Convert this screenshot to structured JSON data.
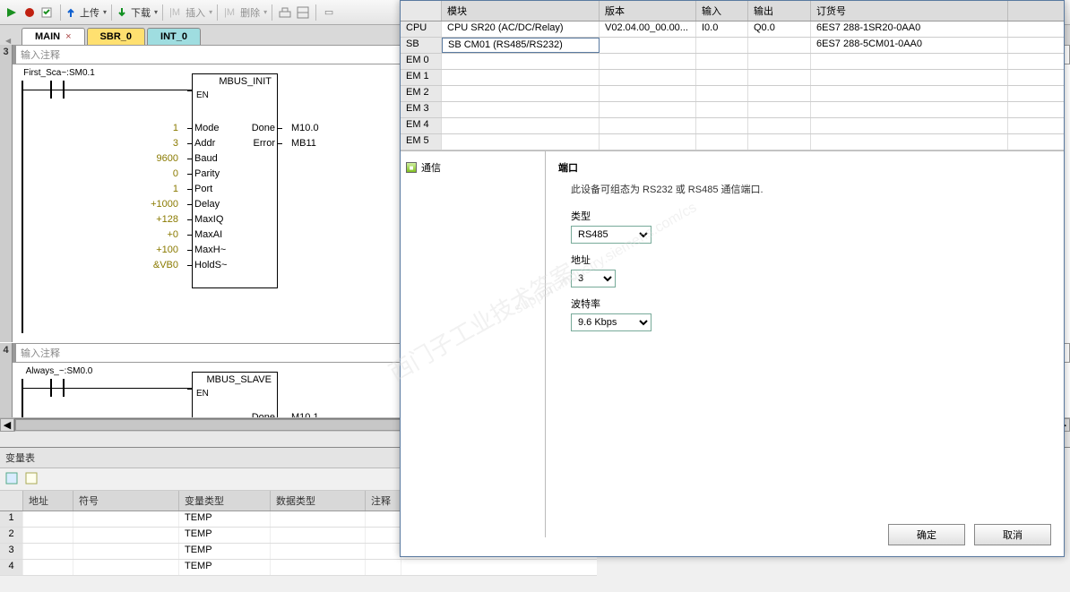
{
  "toolbar": {
    "upload": "上传",
    "download": "下载",
    "insert": "插入",
    "delete": "删除"
  },
  "tabs": [
    {
      "label": "MAIN",
      "style": "active",
      "closable": true
    },
    {
      "label": "SBR_0",
      "style": "yellow"
    },
    {
      "label": "INT_0",
      "style": "teal"
    }
  ],
  "networks": [
    {
      "num": "3",
      "comment": "输入注释",
      "contact": "First_Sca~:SM0.1",
      "block": {
        "title": "MBUS_INIT",
        "en": "EN",
        "left_pins": [
          {
            "val": "1",
            "name": "Mode"
          },
          {
            "val": "3",
            "name": "Addr"
          },
          {
            "val": "9600",
            "name": "Baud"
          },
          {
            "val": "0",
            "name": "Parity"
          },
          {
            "val": "1",
            "name": "Port"
          },
          {
            "val": "+1000",
            "name": "Delay"
          },
          {
            "val": "+128",
            "name": "MaxIQ"
          },
          {
            "val": "+0",
            "name": "MaxAI"
          },
          {
            "val": "+100",
            "name": "MaxH~"
          },
          {
            "val": "&VB0",
            "name": "HoldS~"
          }
        ],
        "right_pins": [
          {
            "name": "Done",
            "val": "M10.0"
          },
          {
            "name": "Error",
            "val": "MB11"
          }
        ]
      }
    },
    {
      "num": "4",
      "comment": "输入注释",
      "contact": "Always_~:SM0.0",
      "block": {
        "title": "MBUS_SLAVE",
        "en": "EN",
        "left_pins": [],
        "right_pins": [
          {
            "name": "Done",
            "val": "M10.1"
          }
        ]
      }
    }
  ],
  "var_table": {
    "title": "变量表",
    "headers": {
      "addr": "地址",
      "sym": "符号",
      "vtype": "变量类型",
      "dtype": "数据类型",
      "cmt": "注释"
    },
    "rows": [
      {
        "n": "1",
        "vtype": "TEMP"
      },
      {
        "n": "2",
        "vtype": "TEMP"
      },
      {
        "n": "3",
        "vtype": "TEMP"
      },
      {
        "n": "4",
        "vtype": "TEMP"
      }
    ]
  },
  "dialog": {
    "columns": {
      "mod": "模块",
      "ver": "版本",
      "in": "输入",
      "out": "输出",
      "ord": "订货号"
    },
    "rows": [
      {
        "slot": "CPU",
        "mod": "CPU SR20 (AC/DC/Relay)",
        "ver": "V02.04.00_00.00...",
        "in": "I0.0",
        "out": "Q0.0",
        "ord": "6ES7 288-1SR20-0AA0"
      },
      {
        "slot": "SB",
        "mod": "SB CM01 (RS485/RS232)",
        "ver": "",
        "in": "",
        "out": "",
        "ord": "6ES7 288-5CM01-0AA0",
        "sel": true
      },
      {
        "slot": "EM 0"
      },
      {
        "slot": "EM 1"
      },
      {
        "slot": "EM 2"
      },
      {
        "slot": "EM 3"
      },
      {
        "slot": "EM 4"
      },
      {
        "slot": "EM 5"
      }
    ],
    "tree": {
      "comm": "通信"
    },
    "form": {
      "section": "端口",
      "desc": "此设备可组态为 RS232 或 RS485 通信端口.",
      "type_label": "类型",
      "type_value": "RS485",
      "addr_label": "地址",
      "addr_value": "3",
      "baud_label": "波特率",
      "baud_value": "9.6 Kbps"
    },
    "ok": "确定",
    "cancel": "取消"
  }
}
